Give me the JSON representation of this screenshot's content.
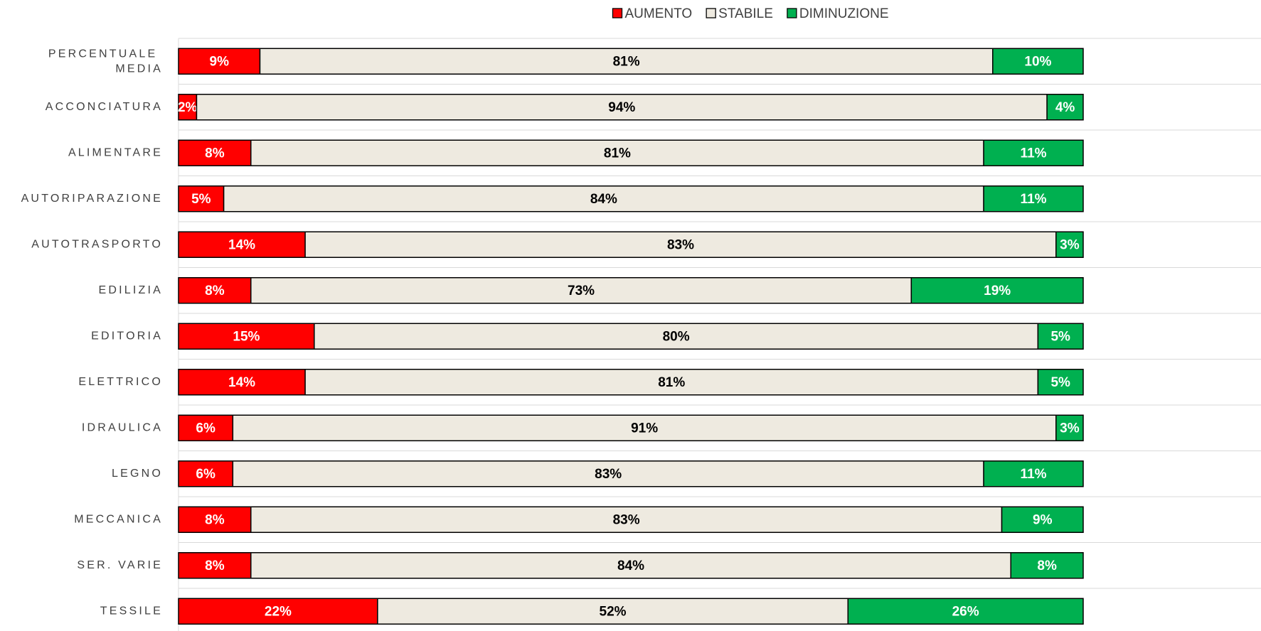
{
  "chart_data": {
    "type": "stacked_bar",
    "orientation": "horizontal",
    "categories": [
      "PERCENTUALE MEDIA",
      "ACCONCIATURA",
      "ALIMENTARE",
      "AUTORIPARAZIONE",
      "AUTOTRASPORTO",
      "EDILIZIA",
      "EDITORIA",
      "ELETTRICO",
      "IDRAULICA",
      "LEGNO",
      "MECCANICA",
      "SER. VARIE",
      "TESSILE"
    ],
    "series": [
      {
        "name": "AUMENTO",
        "color": "#ff0000",
        "label_color": "#ffffff",
        "values": [
          9,
          2,
          8,
          5,
          14,
          8,
          15,
          14,
          6,
          6,
          8,
          8,
          22
        ],
        "value_labels": [
          "9%",
          "2%",
          "8%",
          "5%",
          "14%",
          "8%",
          "15%",
          "14%",
          "6%",
          "6%",
          "8%",
          "8%",
          "22%"
        ]
      },
      {
        "name": "STABILE",
        "color": "#eeeae0",
        "label_color": "#000000",
        "values": [
          81,
          94,
          81,
          84,
          83,
          73,
          80,
          81,
          91,
          83,
          83,
          84,
          52
        ],
        "value_labels": [
          "81%",
          "94%",
          "81%",
          "84%",
          "83%",
          "73%",
          "80%",
          "81%",
          "91%",
          "83%",
          "83%",
          "84%",
          "52%"
        ]
      },
      {
        "name": "DIMINUZIONE",
        "color": "#00b050",
        "label_color": "#ffffff",
        "values": [
          10,
          4,
          11,
          11,
          3,
          19,
          5,
          5,
          3,
          11,
          9,
          8,
          26
        ],
        "value_labels": [
          "10%",
          "4%",
          "11%",
          "11%",
          "3%",
          "19%",
          "5%",
          "5%",
          "3%",
          "11%",
          "9%",
          "8%",
          "26%"
        ]
      }
    ],
    "xlim": [
      0,
      100
    ],
    "legend": "top",
    "grid": true
  }
}
